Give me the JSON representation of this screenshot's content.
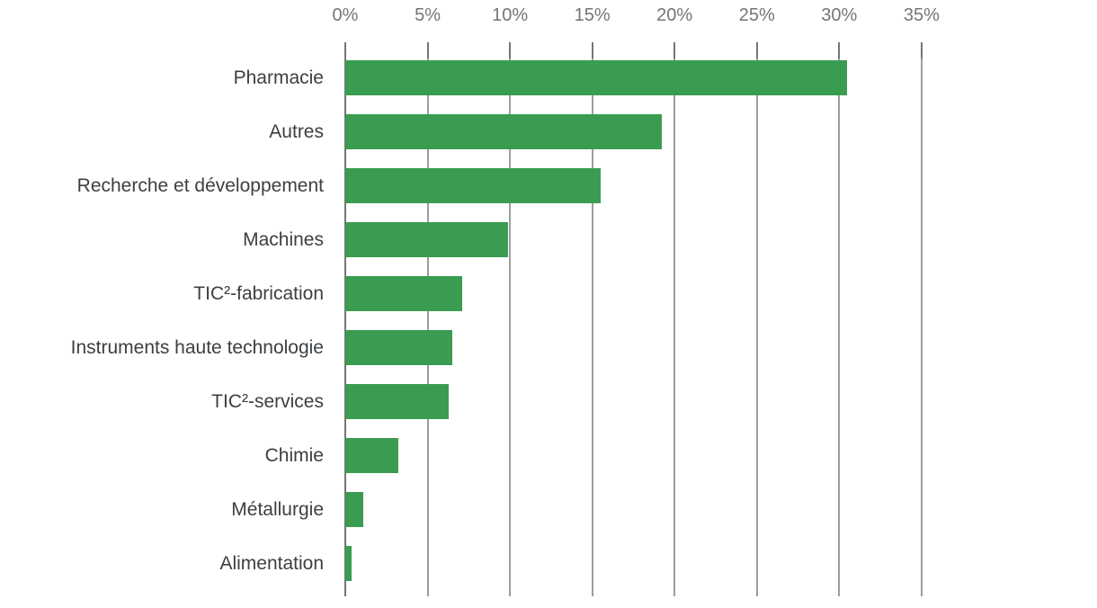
{
  "chart_data": {
    "type": "bar",
    "orientation": "horizontal",
    "title": "",
    "xlabel": "",
    "ylabel": "",
    "categories": [
      "Pharmacie",
      "Autres",
      "Recherche et développement",
      "Machines",
      "TIC²-fabrication",
      "Instruments haute technologie",
      "TIC²-services",
      "Chimie",
      "Métallurgie",
      "Alimentation"
    ],
    "values": [
      30.5,
      19.2,
      15.5,
      9.9,
      7.1,
      6.5,
      6.3,
      3.2,
      1.1,
      0.4
    ],
    "value_unit": "%",
    "x_ticks": [
      "0%",
      "5%",
      "10%",
      "15%",
      "20%",
      "25%",
      "30%",
      "35%"
    ],
    "x_tick_values": [
      0,
      5,
      10,
      15,
      20,
      25,
      30,
      35
    ],
    "xlim": [
      0,
      35
    ],
    "grid": true,
    "legend": "none",
    "axis_position": "top",
    "colors": {
      "bar": "#3a9c51",
      "gridline": "#9e9e9e",
      "axis_line": "#757575",
      "tick_mark": "#757575",
      "tick_label": "#757575",
      "category_label": "#3c4043",
      "background": "#ffffff"
    }
  }
}
